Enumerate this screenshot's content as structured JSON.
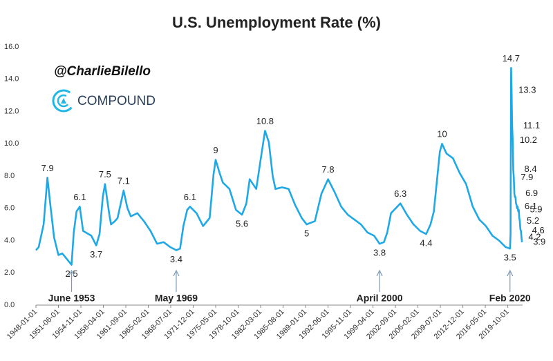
{
  "chart_data": {
    "type": "line",
    "title": "U.S. Unemployment Rate (%)",
    "handle": "@CharlieBilello",
    "brand": "COMPOUND",
    "color": "#1fa8e6",
    "x": [
      "1948-01-01",
      "1948-06-01",
      "1949-03-01",
      "1949-10-01",
      "1950-03-01",
      "1950-10-01",
      "1951-06-01",
      "1952-01-01",
      "1952-06-01",
      "1953-06-01",
      "1953-10-01",
      "1954-03-01",
      "1954-09-01",
      "1955-03-01",
      "1956-06-01",
      "1957-03-01",
      "1957-09-01",
      "1958-03-01",
      "1958-07-01",
      "1959-03-01",
      "1959-06-01",
      "1960-01-01",
      "1960-06-01",
      "1961-05-01",
      "1961-12-01",
      "1962-06-01",
      "1963-06-01",
      "1964-06-01",
      "1965-06-01",
      "1966-06-01",
      "1967-06-01",
      "1968-06-01",
      "1969-05-01",
      "1969-12-01",
      "1970-06-01",
      "1971-01-01",
      "1971-06-01",
      "1972-06-01",
      "1973-06-01",
      "1974-06-01",
      "1975-01-01",
      "1975-05-01",
      "1975-12-01",
      "1976-06-01",
      "1977-06-01",
      "1978-06-01",
      "1979-05-01",
      "1980-01-01",
      "1980-07-01",
      "1981-01-01",
      "1981-07-01",
      "1982-03-01",
      "1982-11-01",
      "1983-06-01",
      "1984-01-01",
      "1984-06-01",
      "1985-06-01",
      "1986-06-01",
      "1987-06-01",
      "1988-06-01",
      "1989-03-01",
      "1990-06-01",
      "1991-06-01",
      "1992-06-01",
      "1993-06-01",
      "1994-06-01",
      "1995-06-01",
      "1996-06-01",
      "1997-06-01",
      "1998-06-01",
      "1999-06-01",
      "2000-04-01",
      "2000-12-01",
      "2001-06-01",
      "2002-01-01",
      "2003-06-01",
      "2004-06-01",
      "2005-06-01",
      "2006-06-01",
      "2007-05-01",
      "2008-01-01",
      "2008-07-01",
      "2009-01-01",
      "2009-06-01",
      "2009-10-01",
      "2010-06-01",
      "2011-06-01",
      "2012-06-01",
      "2013-06-01",
      "2014-06-01",
      "2015-06-01",
      "2016-06-01",
      "2017-06-01",
      "2018-06-01",
      "2019-06-01",
      "2020-02-01",
      "2020-03-01",
      "2020-04-01",
      "2020-05-01",
      "2020-06-01",
      "2020-07-01",
      "2020-08-01",
      "2020-09-01",
      "2020-10-01",
      "2020-11-01",
      "2020-12-01",
      "2021-01-01",
      "2021-02-01",
      "2021-03-01",
      "2021-04-01",
      "2021-05-01",
      "2021-06-01",
      "2021-07-01",
      "2021-08-01",
      "2021-09-01",
      "2021-10-01",
      "2021-11-01",
      "2021-12-01"
    ],
    "values": [
      3.4,
      3.6,
      5.0,
      7.9,
      6.3,
      4.2,
      3.1,
      3.2,
      3.0,
      2.5,
      4.5,
      5.8,
      6.1,
      4.6,
      4.3,
      3.7,
      4.4,
      6.7,
      7.5,
      5.6,
      5.0,
      5.2,
      5.4,
      7.1,
      6.0,
      5.5,
      5.7,
      5.2,
      4.6,
      3.8,
      3.9,
      3.6,
      3.4,
      3.5,
      4.9,
      5.9,
      6.1,
      5.7,
      4.9,
      5.4,
      8.1,
      9.0,
      8.2,
      7.6,
      7.2,
      5.9,
      5.6,
      6.3,
      7.8,
      7.5,
      7.2,
      9.0,
      10.8,
      10.1,
      8.0,
      7.2,
      7.3,
      7.2,
      6.2,
      5.4,
      5.0,
      5.2,
      6.9,
      7.8,
      7.0,
      6.1,
      5.6,
      5.3,
      5.0,
      4.5,
      4.3,
      3.8,
      3.9,
      4.5,
      5.7,
      6.3,
      5.6,
      5.0,
      4.6,
      4.4,
      5.0,
      5.8,
      7.8,
      9.5,
      10.0,
      9.4,
      9.1,
      8.2,
      7.5,
      6.1,
      5.3,
      4.9,
      4.3,
      4.0,
      3.6,
      3.5,
      4.4,
      14.7,
      13.3,
      11.1,
      10.2,
      8.4,
      7.9,
      6.9,
      6.7,
      6.7,
      6.3,
      6.2,
      6.0,
      6.1,
      5.8,
      5.9,
      5.4,
      5.2,
      4.7,
      4.6,
      4.2,
      3.9
    ],
    "xlim": [
      "1948-01-01",
      "2022-01-01"
    ],
    "xticks": [
      "1948-01-01",
      "1951-06-01",
      "1954-11-01",
      "1958-04-01",
      "1961-09-01",
      "1965-02-01",
      "1968-07-01",
      "1971-12-01",
      "1975-05-01",
      "1978-10-01",
      "1982-03-01",
      "1985-08-01",
      "1989-01-01",
      "1992-06-01",
      "1995-11-01",
      "1999-04-01",
      "2002-09-01",
      "2006-02-01",
      "2009-07-01",
      "2012-12-01",
      "2016-05-01",
      "2019-10-01"
    ],
    "ylim": [
      0,
      16
    ],
    "yticks": [
      {
        "value": 0,
        "label": "0.0"
      },
      {
        "value": 2,
        "label": "2.0"
      },
      {
        "value": 4,
        "label": "4.0"
      },
      {
        "value": 6,
        "label": "6.0"
      },
      {
        "value": 8,
        "label": "8.0"
      },
      {
        "value": 10,
        "label": "10.0"
      },
      {
        "value": 12,
        "label": "12.0"
      },
      {
        "value": 14,
        "label": "14.0"
      },
      {
        "value": 16,
        "label": "16.0"
      }
    ],
    "annotations": [
      {
        "x": "1949-10-01",
        "value": 7.9,
        "side": "above"
      },
      {
        "x": "1953-06-01",
        "value": 2.5,
        "side": "below"
      },
      {
        "x": "1954-09-01",
        "value": 6.1,
        "side": "above"
      },
      {
        "x": "1957-03-01",
        "value": 3.7,
        "side": "below"
      },
      {
        "x": "1958-07-01",
        "value": 7.5,
        "side": "above"
      },
      {
        "x": "1961-05-01",
        "value": 7.1,
        "side": "above"
      },
      {
        "x": "1969-05-01",
        "value": 3.4,
        "side": "below"
      },
      {
        "x": "1971-06-01",
        "value": 6.1,
        "side": "above"
      },
      {
        "x": "1975-05-01",
        "value": 9.0,
        "side": "above"
      },
      {
        "x": "1979-05-01",
        "value": 5.6,
        "side": "below"
      },
      {
        "x": "1982-11-01",
        "value": 10.8,
        "side": "above"
      },
      {
        "x": "1989-03-01",
        "value": 5.0,
        "side": "below"
      },
      {
        "x": "1992-06-01",
        "value": 7.8,
        "side": "above"
      },
      {
        "x": "2000-04-01",
        "value": 3.8,
        "side": "below"
      },
      {
        "x": "2003-06-01",
        "value": 6.3,
        "side": "above"
      },
      {
        "x": "2007-05-01",
        "value": 4.4,
        "side": "below"
      },
      {
        "x": "2009-10-01",
        "value": 10.0,
        "side": "above"
      },
      {
        "x": "2020-02-01",
        "value": 3.5,
        "side": "below"
      },
      {
        "x": "2020-04-01",
        "value": 14.7,
        "side": "above"
      },
      {
        "x": "2020-05-01",
        "value": 13.3,
        "side": "right"
      },
      {
        "x": "2020-06-01",
        "value": 11.1,
        "side": "right"
      },
      {
        "x": "2020-07-01",
        "value": 10.2,
        "side": "right"
      },
      {
        "x": "2020-08-01",
        "value": 8.4,
        "side": "right"
      },
      {
        "x": "2020-09-01",
        "value": 7.9,
        "side": "right"
      },
      {
        "x": "2020-10-01",
        "value": 6.9,
        "side": "right"
      },
      {
        "x": "2021-04-01",
        "value": 6.1,
        "side": "right"
      },
      {
        "x": "2021-06-01",
        "value": 5.9,
        "side": "right"
      },
      {
        "x": "2021-08-01",
        "value": 5.2,
        "side": "right"
      },
      {
        "x": "2021-10-01",
        "value": 4.6,
        "side": "right"
      },
      {
        "x": "2021-11-01",
        "value": 4.2,
        "side": "right"
      },
      {
        "x": "2021-12-01",
        "value": 3.9,
        "side": "right"
      }
    ],
    "callouts": [
      {
        "x": "1953-06-01",
        "label": "June 1953"
      },
      {
        "x": "1969-05-01",
        "label": "May 1969"
      },
      {
        "x": "2000-04-01",
        "label": "April 2000"
      },
      {
        "x": "2020-02-01",
        "label": "Feb 2020"
      }
    ]
  }
}
